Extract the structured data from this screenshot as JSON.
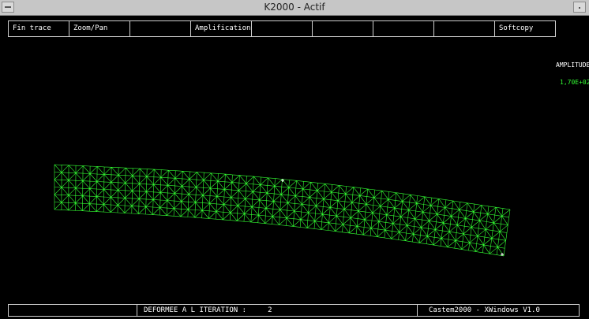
{
  "window": {
    "title": "K2000 - Actif"
  },
  "toolbar": {
    "buttons": [
      "Fin trace",
      "Zoom/Pan",
      "",
      "Amplification",
      "",
      "",
      "",
      "",
      "Softcopy"
    ]
  },
  "panel": {
    "amplitude_label": "AMPLITUDE",
    "amplitude_value": "1,70E+02"
  },
  "status": {
    "deformation_label": "DEFORMEE A L ITERATION :",
    "iteration": "2",
    "app_version": "Castem2000 - XWindows V1.0"
  },
  "colors": {
    "mesh": "#33ff33",
    "background": "#000000",
    "titlebar": "#c6c6c6"
  }
}
